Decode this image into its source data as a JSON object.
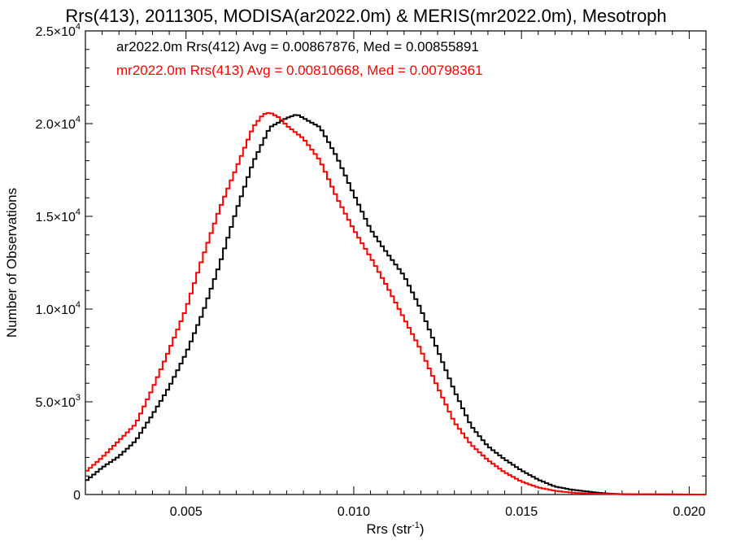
{
  "chart_data": {
    "type": "line",
    "title": "Rrs(413), 2011305, MODISA(ar2022.0m) & MERIS(mr2022.0m), Mesotroph",
    "xlabel": "Rrs (str",
    "xlabel_sup": "-1",
    "xlabel_end": ")",
    "ylabel": "Number of Observations",
    "xlim": [
      0.002,
      0.0205
    ],
    "ylim": [
      0,
      25000
    ],
    "x_ticks": [
      {
        "value": 0.005,
        "label": "0.005"
      },
      {
        "value": 0.01,
        "label": "0.010"
      },
      {
        "value": 0.015,
        "label": "0.015"
      },
      {
        "value": 0.02,
        "label": "0.020"
      }
    ],
    "y_ticks": [
      {
        "value": 0,
        "mant": "0",
        "exp": ""
      },
      {
        "value": 5000,
        "mant": "5.0×10",
        "exp": "3"
      },
      {
        "value": 10000,
        "mant": "1.0×10",
        "exp": "4"
      },
      {
        "value": 15000,
        "mant": "1.5×10",
        "exp": "4"
      },
      {
        "value": 20000,
        "mant": "2.0×10",
        "exp": "4"
      },
      {
        "value": 25000,
        "mant": "2.5×10",
        "exp": "4"
      }
    ],
    "legend_position": "top-left",
    "series": [
      {
        "name": "ar2022.0m Rrs(412) Avg = 0.00867876, Med = 0.00855891",
        "color": "#000000",
        "points": [
          [
            0.002,
            700
          ],
          [
            0.0025,
            1450
          ],
          [
            0.003,
            2050
          ],
          [
            0.0035,
            2900
          ],
          [
            0.004,
            4300
          ],
          [
            0.0045,
            5800
          ],
          [
            0.005,
            7600
          ],
          [
            0.0055,
            9800
          ],
          [
            0.006,
            12400
          ],
          [
            0.0065,
            15300
          ],
          [
            0.007,
            17900
          ],
          [
            0.0075,
            19800
          ],
          [
            0.008,
            20300
          ],
          [
            0.0083,
            20500
          ],
          [
            0.0086,
            20200
          ],
          [
            0.009,
            19800
          ],
          [
            0.0095,
            18200
          ],
          [
            0.01,
            16200
          ],
          [
            0.0105,
            14300
          ],
          [
            0.011,
            13000
          ],
          [
            0.0115,
            11800
          ],
          [
            0.012,
            10000
          ],
          [
            0.0125,
            7800
          ],
          [
            0.013,
            5600
          ],
          [
            0.0135,
            3700
          ],
          [
            0.014,
            2600
          ],
          [
            0.0145,
            1900
          ],
          [
            0.015,
            1300
          ],
          [
            0.0155,
            800
          ],
          [
            0.016,
            430
          ],
          [
            0.0165,
            260
          ],
          [
            0.017,
            150
          ],
          [
            0.0175,
            60
          ],
          [
            0.018,
            20
          ],
          [
            0.019,
            5
          ],
          [
            0.0205,
            0
          ]
        ]
      },
      {
        "name": "mr2022.0m Rrs(413) Avg = 0.00810668, Med = 0.00798361",
        "color": "#ff0000",
        "points": [
          [
            0.002,
            1200
          ],
          [
            0.0025,
            2000
          ],
          [
            0.003,
            2900
          ],
          [
            0.0035,
            3800
          ],
          [
            0.004,
            5700
          ],
          [
            0.0045,
            7800
          ],
          [
            0.005,
            10000
          ],
          [
            0.0055,
            12800
          ],
          [
            0.006,
            15400
          ],
          [
            0.0065,
            17600
          ],
          [
            0.007,
            19800
          ],
          [
            0.0073,
            20500
          ],
          [
            0.0075,
            20600
          ],
          [
            0.0078,
            20300
          ],
          [
            0.008,
            19900
          ],
          [
            0.0085,
            19200
          ],
          [
            0.009,
            18000
          ],
          [
            0.0095,
            16000
          ],
          [
            0.01,
            14300
          ],
          [
            0.0105,
            12800
          ],
          [
            0.011,
            11200
          ],
          [
            0.0115,
            9500
          ],
          [
            0.012,
            7800
          ],
          [
            0.0125,
            5800
          ],
          [
            0.013,
            3900
          ],
          [
            0.0135,
            2700
          ],
          [
            0.014,
            1850
          ],
          [
            0.0145,
            1200
          ],
          [
            0.015,
            700
          ],
          [
            0.0155,
            380
          ],
          [
            0.016,
            200
          ],
          [
            0.0165,
            100
          ],
          [
            0.017,
            50
          ],
          [
            0.018,
            15
          ],
          [
            0.0205,
            0
          ]
        ]
      }
    ]
  }
}
